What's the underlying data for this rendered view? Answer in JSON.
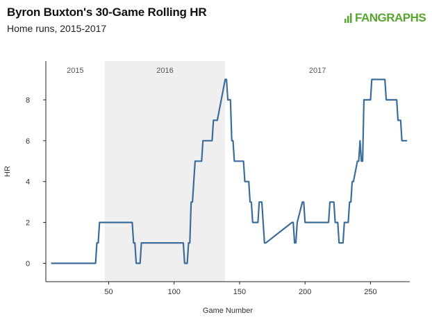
{
  "header": {
    "title": "Byron Buxton's 30-Game Rolling HR",
    "subtitle": "Home runs, 2015-2017",
    "brand": "FANGRAPHS",
    "brand_color": "#58a52f"
  },
  "chart_data": {
    "type": "line",
    "title": "Byron Buxton's 30-Game Rolling HR",
    "subtitle": "Home runs, 2015-2017",
    "xlabel": "Game Number",
    "ylabel": "HR",
    "xlim": [
      2,
      280
    ],
    "ylim": [
      -0.9,
      9.9
    ],
    "xticks": [
      50,
      100,
      150,
      200,
      250
    ],
    "yticks": [
      0,
      2,
      4,
      6,
      8
    ],
    "grid": false,
    "line_color": "#3c6c9a",
    "shaded_color": "#efefef",
    "regions": [
      {
        "label": "2015",
        "start": 2,
        "end": 47
      },
      {
        "label": "2016",
        "start": 47,
        "end": 139
      },
      {
        "label": "2017",
        "start": 139,
        "end": 280
      }
    ],
    "series": [
      {
        "x": [
          6,
          40,
          41,
          42,
          43,
          44,
          68,
          69,
          70,
          71,
          72,
          74,
          75,
          76,
          107,
          108,
          110,
          111,
          112,
          113,
          114,
          116,
          117,
          118,
          121,
          122,
          129,
          130,
          132,
          133,
          139,
          140,
          141,
          143,
          144,
          145,
          146,
          153,
          154,
          156,
          157,
          158,
          159,
          160,
          164,
          165,
          167,
          168,
          169,
          170,
          190,
          191,
          192,
          193,
          194,
          198,
          199,
          200,
          218,
          219,
          220,
          221,
          222,
          223,
          225,
          226,
          227,
          228,
          229,
          230,
          233,
          234,
          235,
          236,
          237,
          240,
          241,
          242,
          243,
          244,
          245,
          246,
          247,
          248,
          249,
          250,
          251,
          252,
          261,
          262,
          267,
          268,
          269,
          270,
          271,
          272,
          273,
          274,
          275,
          276,
          278
        ],
        "y": [
          0,
          0,
          1,
          1,
          2,
          2,
          2,
          1,
          1,
          0,
          0,
          0,
          1,
          1,
          1,
          0,
          0,
          1,
          1,
          3,
          3,
          5,
          5,
          5,
          5,
          6,
          6,
          7,
          7,
          7,
          9,
          9,
          8,
          8,
          6,
          6,
          5,
          5,
          4,
          4,
          4,
          3,
          3,
          2,
          2,
          3,
          3,
          2,
          1,
          1,
          2,
          2,
          1,
          1,
          2,
          3,
          3,
          2,
          2,
          3,
          3,
          3,
          3,
          2,
          2,
          1,
          1,
          1,
          1,
          2,
          2,
          3,
          3,
          4,
          4,
          5,
          5,
          6,
          5,
          5,
          8,
          8,
          8,
          8,
          8,
          8,
          9,
          9,
          9,
          8,
          8,
          8,
          8,
          8,
          7,
          7,
          7,
          6,
          6,
          6,
          6
        ]
      }
    ]
  }
}
